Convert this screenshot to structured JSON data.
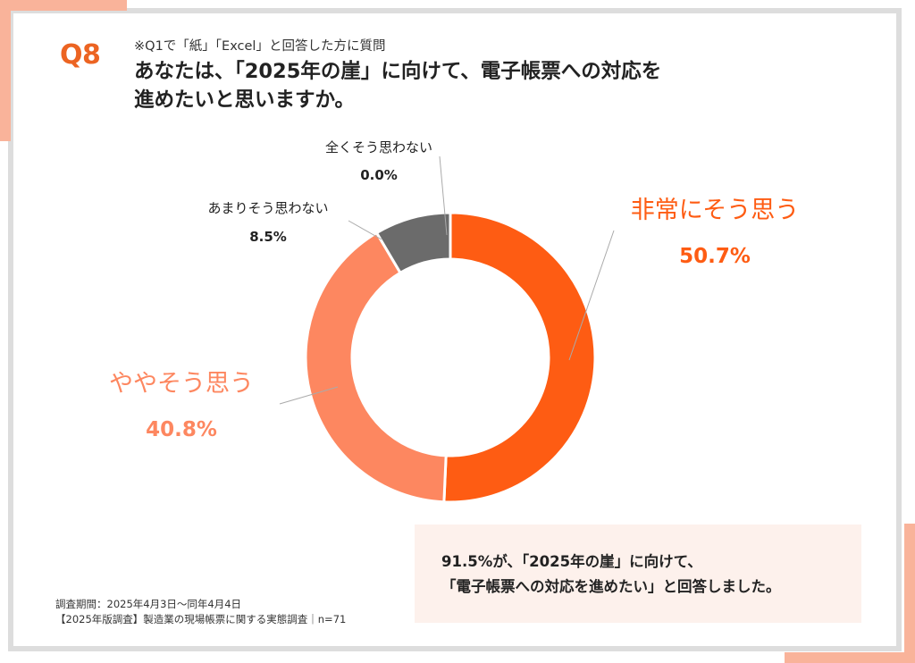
{
  "question_id": "Q8",
  "pre_note": "※Q1で「紙」「Excel」と回答した方に質問",
  "question_line1": "あなたは、「2025年の崖」に向けて、電子帳票への対応を",
  "question_line2": "進めたいと思いますか。",
  "colors": {
    "accent": "#ec6422",
    "frame": "#dddddd",
    "frame_accent": "#f9b39a",
    "callout_bg": "#fdf1ec"
  },
  "chart_data": {
    "type": "pie",
    "donut": true,
    "slices": [
      {
        "label": "非常にそう思う",
        "value": 50.7,
        "value_label": "50.7%",
        "color": "#fe5c13"
      },
      {
        "label": "ややそう思う",
        "value": 40.8,
        "value_label": "40.8%",
        "color": "#fd8760"
      },
      {
        "label": "あまりそう思わない",
        "value": 8.5,
        "value_label": "8.5%",
        "color": "#6b6b6b"
      },
      {
        "label": "全くそう思わない",
        "value": 0.0,
        "value_label": "0.0%",
        "color": "#bbbbbb"
      }
    ]
  },
  "callout": {
    "line1": "91.5%が、「2025年の崖」に向けて、",
    "line2": "「電子帳票への対応を進めたい」と回答しました。"
  },
  "footer": {
    "line1": "調査期間：2025年4月3日〜同年4月4日",
    "line2": "【2025年版調査】製造業の現場帳票に関する実態調査｜n=71"
  }
}
